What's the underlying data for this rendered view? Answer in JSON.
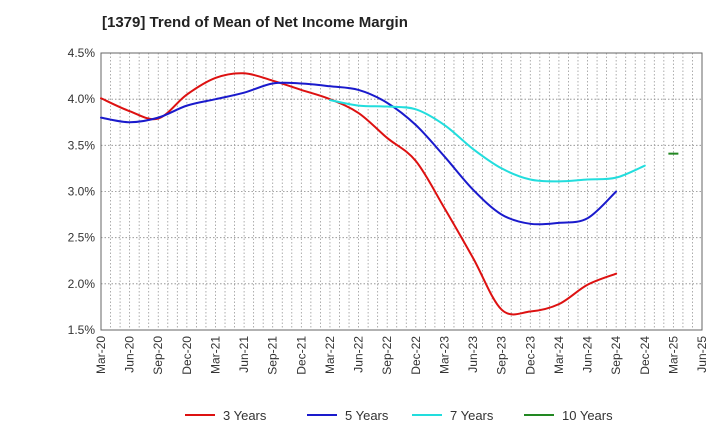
{
  "chart_data": {
    "type": "line",
    "title": "[1379]  Trend of Mean of Net Income Margin",
    "xlabel": "",
    "ylabel": "",
    "ylim": [
      1.5,
      4.5
    ],
    "yticks": [
      1.5,
      2.0,
      2.5,
      3.0,
      3.5,
      4.0,
      4.5
    ],
    "ytick_labels": [
      "1.5%",
      "2.0%",
      "2.5%",
      "3.0%",
      "3.5%",
      "4.0%",
      "4.5%"
    ],
    "x_categories": [
      "Mar-20",
      "Jun-20",
      "Sep-20",
      "Dec-20",
      "Mar-21",
      "Jun-21",
      "Sep-21",
      "Dec-21",
      "Mar-22",
      "Jun-22",
      "Sep-22",
      "Dec-22",
      "Mar-23",
      "Jun-23",
      "Sep-23",
      "Dec-23",
      "Mar-24",
      "Jun-24",
      "Sep-24",
      "Dec-24",
      "Mar-25",
      "Jun-25"
    ],
    "grid": true,
    "legend_position": "bottom",
    "series": [
      {
        "name": "3 Years",
        "color": "#dd1111",
        "values": [
          4.01,
          3.87,
          3.79,
          4.05,
          4.23,
          4.28,
          4.2,
          4.1,
          4.0,
          3.85,
          3.58,
          3.33,
          2.82,
          2.28,
          1.72,
          1.7,
          1.78,
          1.99,
          2.11
        ]
      },
      {
        "name": "5 Years",
        "color": "#1a1acc",
        "values": [
          3.8,
          3.75,
          3.8,
          3.93,
          4.0,
          4.07,
          4.17,
          4.17,
          4.14,
          4.1,
          3.96,
          3.72,
          3.38,
          3.02,
          2.75,
          2.65,
          2.66,
          2.71,
          3.0
        ]
      },
      {
        "name": "7 Years",
        "color": "#22dddd",
        "start_index": 8,
        "values": [
          3.99,
          3.93,
          3.92,
          3.89,
          3.72,
          3.46,
          3.25,
          3.13,
          3.11,
          3.13,
          3.15,
          3.28
        ]
      },
      {
        "name": "10 Years",
        "color": "#228822",
        "start_index": 20,
        "values": [
          3.41
        ]
      }
    ]
  }
}
